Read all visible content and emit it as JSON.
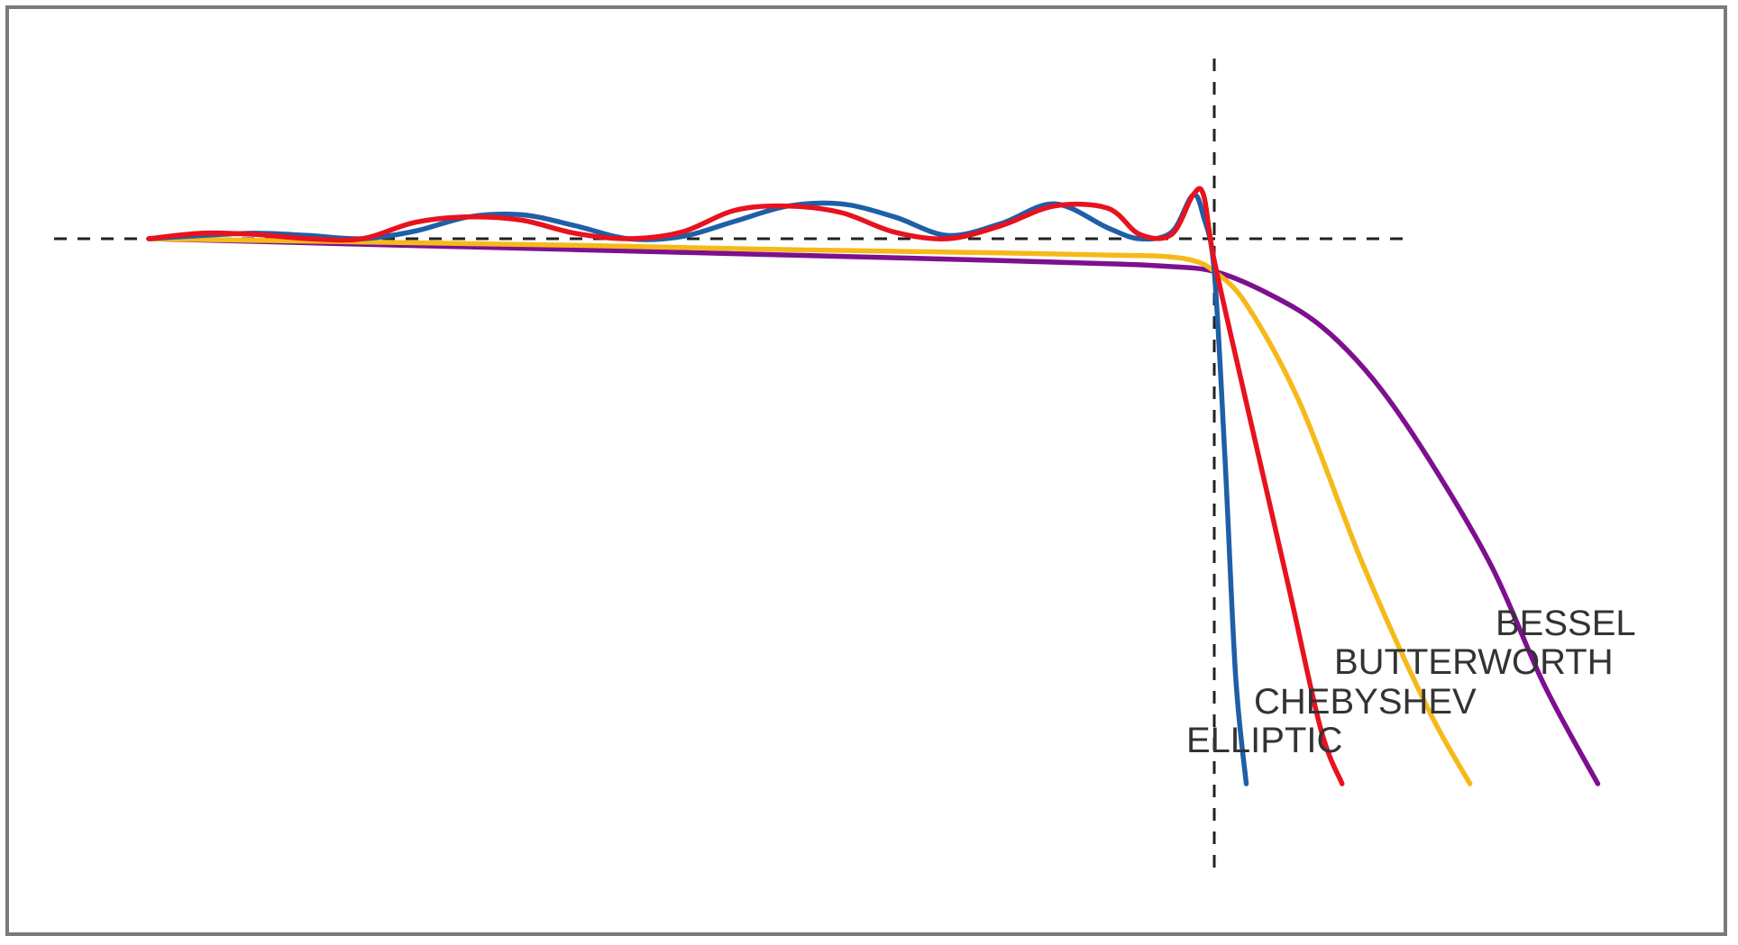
{
  "chart_data": {
    "type": "line",
    "title": "",
    "xlabel": "",
    "ylabel": "",
    "xlim": [
      0,
      1.6
    ],
    "ylim": [
      -0.6,
      0.22
    ],
    "grid": false,
    "legend": "inline-labels",
    "reference_lines": {
      "passband_level": 0,
      "cutoff_frequency": 1
    },
    "series": [
      {
        "name": "ELLIPTIC",
        "color": "#1f5fa8",
        "x": [
          0,
          0.05,
          0.1,
          0.15,
          0.2,
          0.25,
          0.3,
          0.35,
          0.4,
          0.45,
          0.5,
          0.55,
          0.6,
          0.65,
          0.7,
          0.75,
          0.8,
          0.85,
          0.9,
          0.93,
          0.96,
          0.98,
          0.99,
          1.0,
          1.01,
          1.02,
          1.03
        ],
        "y": [
          0,
          0.003,
          0.005,
          0.003,
          0,
          0.007,
          0.02,
          0.022,
          0.012,
          0,
          0.002,
          0.016,
          0.03,
          0.032,
          0.02,
          0.003,
          0.014,
          0.032,
          0.01,
          0,
          0.006,
          0.04,
          0.02,
          -0.03,
          -0.2,
          -0.4,
          -0.5
        ]
      },
      {
        "name": "CHEBYSHEV",
        "color": "#e8121f",
        "x": [
          0,
          0.05,
          0.1,
          0.15,
          0.2,
          0.25,
          0.3,
          0.35,
          0.4,
          0.45,
          0.5,
          0.55,
          0.6,
          0.65,
          0.7,
          0.75,
          0.8,
          0.85,
          0.9,
          0.93,
          0.96,
          0.98,
          0.99,
          1.0,
          1.03,
          1.07,
          1.1,
          1.12
        ],
        "y": [
          0,
          0.005,
          0.004,
          0,
          0,
          0.015,
          0.02,
          0.017,
          0.005,
          0,
          0.006,
          0.026,
          0.03,
          0.024,
          0.006,
          0,
          0.012,
          0.03,
          0.028,
          0.004,
          0.004,
          0.04,
          0.04,
          -0.02,
          -0.15,
          -0.32,
          -0.45,
          -0.5
        ]
      },
      {
        "name": "BUTTERWORTH",
        "color": "#f6b91a",
        "x": [
          0,
          0.2,
          0.4,
          0.6,
          0.8,
          0.9,
          0.95,
          0.98,
          1.0,
          1.03,
          1.08,
          1.14,
          1.2,
          1.24
        ],
        "y": [
          0,
          -0.003,
          -0.006,
          -0.01,
          -0.013,
          -0.015,
          -0.016,
          -0.02,
          -0.03,
          -0.06,
          -0.15,
          -0.3,
          -0.43,
          -0.5
        ]
      },
      {
        "name": "BESSEL",
        "color": "#7d108f",
        "x": [
          0,
          0.2,
          0.4,
          0.6,
          0.8,
          0.9,
          0.95,
          1.0,
          1.05,
          1.1,
          1.15,
          1.2,
          1.26,
          1.31,
          1.36
        ],
        "y": [
          0,
          -0.005,
          -0.01,
          -0.015,
          -0.02,
          -0.023,
          -0.025,
          -0.03,
          -0.05,
          -0.08,
          -0.13,
          -0.2,
          -0.3,
          -0.41,
          -0.5
        ]
      }
    ]
  },
  "labels": {
    "bessel": "BESSEL",
    "butterworth": "BUTTERWORTH",
    "chebyshev": "CHEBYSHEV",
    "elliptic": "ELLIPTIC"
  }
}
